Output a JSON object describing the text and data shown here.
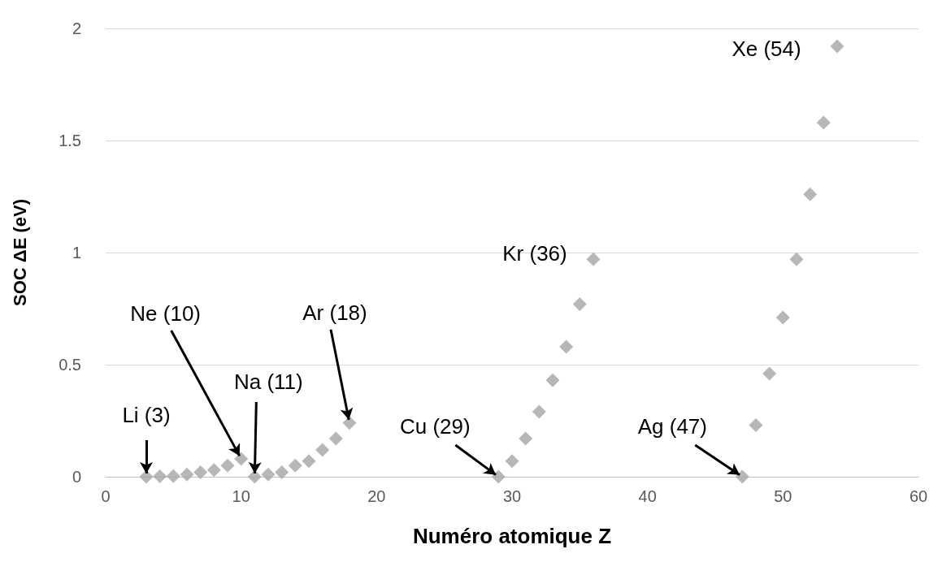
{
  "chart_data": {
    "type": "scatter",
    "xlabel": "Numéro atomique Z",
    "ylabel": "SOC ΔE (eV)",
    "x": [
      3,
      4,
      5,
      6,
      7,
      8,
      9,
      10,
      11,
      12,
      13,
      14,
      15,
      16,
      17,
      18,
      29,
      30,
      31,
      32,
      33,
      34,
      35,
      36,
      47,
      48,
      49,
      50,
      51,
      52,
      53,
      54
    ],
    "series": [
      {
        "color": "#a5a5a5",
        "values": [
          0,
          0.002,
          0.003,
          0.01,
          0.02,
          0.03,
          0.05,
          0.08,
          0,
          0.01,
          0.02,
          0.05,
          0.07,
          0.12,
          0.17,
          0.24,
          0,
          0.07,
          0.17,
          0.29,
          0.43,
          0.58,
          0.77,
          0.97,
          0,
          0.23,
          0.46,
          0.71,
          0.97,
          1.26,
          1.58,
          1.92
        ]
      }
    ],
    "xlim": [
      0,
      60
    ],
    "xticks": [
      0,
      10,
      20,
      30,
      40,
      50,
      60
    ],
    "ylim": [
      0,
      2
    ],
    "yticks": [
      0,
      0.5,
      1,
      1.5,
      2
    ],
    "grid": "y",
    "marker": "diamond",
    "annotations": [
      {
        "text": "Li (3)",
        "x": 3,
        "y": 0
      },
      {
        "text": "Ne (10)",
        "x": 10,
        "y": 0.08
      },
      {
        "text": "Na (11)",
        "x": 11,
        "y": 0
      },
      {
        "text": "Ar (18)",
        "x": 18,
        "y": 0.24
      },
      {
        "text": "Cu (29)",
        "x": 29,
        "y": 0
      },
      {
        "text": "Kr (36)",
        "x": 36,
        "y": 0.97
      },
      {
        "text": "Ag (47)",
        "x": 47,
        "y": 0
      },
      {
        "text": "Xe (54)",
        "x": 54,
        "y": 1.92
      }
    ]
  }
}
